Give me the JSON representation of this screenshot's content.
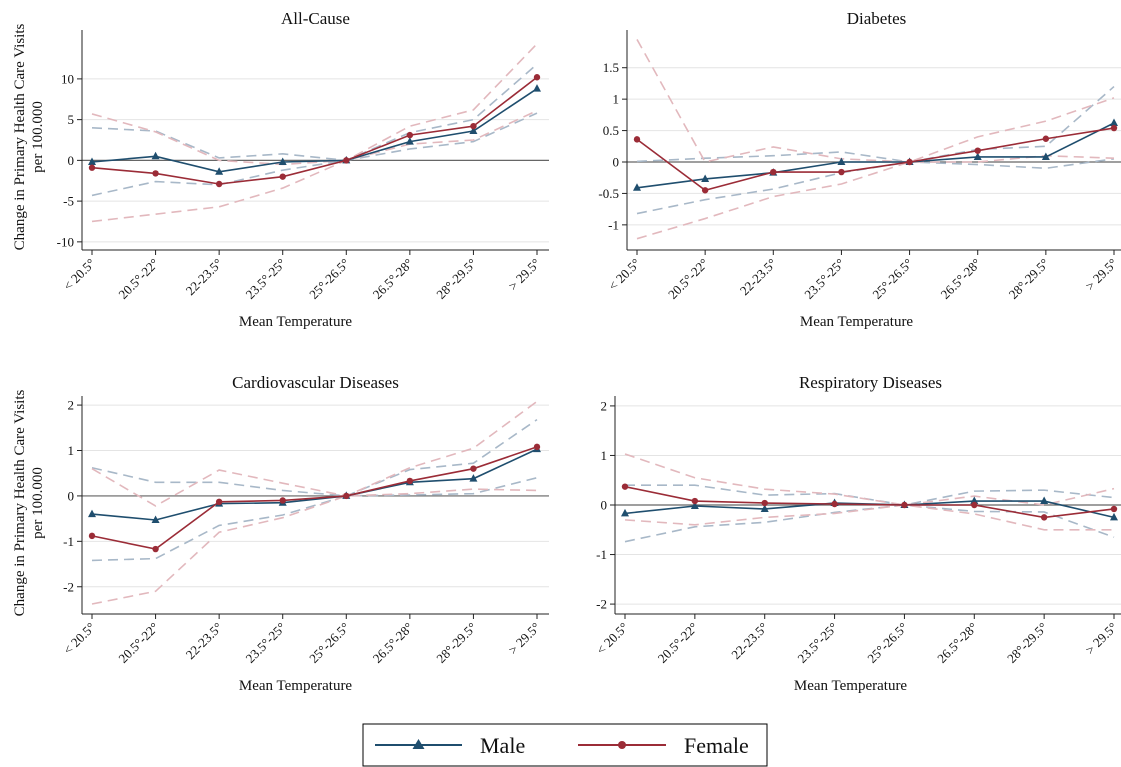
{
  "colors": {
    "male": "#1f4e6e",
    "female": "#9b2c37",
    "male_ci": "#a8b8c8",
    "female_ci": "#e2b8bd",
    "zero_line": "#666666",
    "grid": "#e4e4e4"
  },
  "y_axis_label_line1": "Change in Primary Health Care Visits",
  "y_axis_label_line2": "per 100.000",
  "legend": {
    "male": "Male",
    "female": "Female"
  },
  "chart_data": [
    {
      "type": "line",
      "title": "All-Cause",
      "xlabel": "Mean Temperature",
      "categories": [
        "< 20.5°",
        "20.5°-22°",
        "22-23.5°",
        "23.5°-25°",
        "25°-26.5°",
        "26.5°-28°",
        "28°-29.5°",
        "> 29.5°"
      ],
      "ylim": [
        -11,
        16
      ],
      "yticks": [
        -10,
        -5,
        0,
        5,
        10
      ],
      "grid": true,
      "series": [
        {
          "name": "Male",
          "values": [
            -0.2,
            0.5,
            -1.4,
            -0.2,
            0,
            2.3,
            3.6,
            8.8
          ],
          "ci_low": [
            -4.3,
            -2.6,
            -3.0,
            -1.2,
            0,
            1.4,
            2.3,
            5.8
          ],
          "ci_high": [
            4.0,
            3.6,
            0.3,
            0.8,
            0,
            3.4,
            5.0,
            11.8
          ]
        },
        {
          "name": "Female",
          "values": [
            -0.9,
            -1.6,
            -2.9,
            -2.0,
            0,
            3.1,
            4.2,
            10.2
          ],
          "ci_low": [
            -7.5,
            -6.6,
            -5.7,
            -3.4,
            0,
            2.0,
            2.5,
            6.1
          ],
          "ci_high": [
            5.7,
            3.5,
            0.0,
            -0.5,
            0,
            4.2,
            6.2,
            14.3
          ]
        }
      ]
    },
    {
      "type": "line",
      "title": "Diabetes",
      "xlabel": "Mean Temperature",
      "categories": [
        "< 20.5°",
        "20.5°-22°",
        "22-23.5°",
        "23.5°-25°",
        "25°-26.5°",
        "26.5°-28°",
        "28°-29.5°",
        "> 29.5°"
      ],
      "ylim": [
        -1.4,
        2.1
      ],
      "yticks": [
        -1,
        -0.5,
        0,
        0.5,
        1,
        1.5
      ],
      "grid": true,
      "series": [
        {
          "name": "Male",
          "values": [
            -0.41,
            -0.27,
            -0.17,
            0.0,
            0,
            0.08,
            0.08,
            0.62
          ],
          "ci_low": [
            -0.82,
            -0.6,
            -0.43,
            -0.17,
            0,
            -0.04,
            -0.1,
            0.05
          ],
          "ci_high": [
            0.01,
            0.06,
            0.1,
            0.16,
            0,
            0.2,
            0.25,
            1.2
          ]
        },
        {
          "name": "Female",
          "values": [
            0.36,
            -0.45,
            -0.16,
            -0.16,
            0,
            0.18,
            0.37,
            0.54
          ],
          "ci_low": [
            -1.22,
            -0.9,
            -0.55,
            -0.35,
            0,
            0.0,
            0.1,
            0.06
          ],
          "ci_high": [
            1.95,
            0.0,
            0.24,
            0.05,
            0,
            0.4,
            0.65,
            1.02
          ]
        }
      ]
    },
    {
      "type": "line",
      "title": "Cardiovascular Diseases",
      "xlabel": "Mean Temperature",
      "categories": [
        "< 20.5°",
        "20.5°-22°",
        "22-23.5°",
        "23.5°-25°",
        "25°-26.5°",
        "26.5°-28°",
        "28°-29.5°",
        "> 29.5°"
      ],
      "ylim": [
        -2.6,
        2.2
      ],
      "yticks": [
        -2,
        -1,
        0,
        1,
        2
      ],
      "grid": true,
      "series": [
        {
          "name": "Male",
          "values": [
            -0.4,
            -0.53,
            -0.17,
            -0.15,
            0,
            0.3,
            0.38,
            1.03
          ],
          "ci_low": [
            -1.42,
            -1.38,
            -0.65,
            -0.42,
            0,
            0.02,
            0.05,
            0.4
          ],
          "ci_high": [
            0.62,
            0.3,
            0.3,
            0.12,
            0,
            0.58,
            0.72,
            1.68
          ]
        },
        {
          "name": "Female",
          "values": [
            -0.88,
            -1.17,
            -0.13,
            -0.1,
            0,
            0.33,
            0.6,
            1.08
          ],
          "ci_low": [
            -2.38,
            -2.1,
            -0.8,
            -0.48,
            0,
            0.05,
            0.15,
            0.12
          ],
          "ci_high": [
            0.6,
            -0.22,
            0.57,
            0.28,
            0,
            0.62,
            1.05,
            2.08
          ]
        }
      ]
    },
    {
      "type": "line",
      "title": "Respiratory Diseases",
      "xlabel": "Mean Temperature",
      "categories": [
        "< 20.5°",
        "20.5°-22°",
        "22-23.5°",
        "23.5°-25°",
        "25°-26.5°",
        "26.5°-28°",
        "28°-29.5°",
        "> 29.5°"
      ],
      "ylim": [
        -2.2,
        2.2
      ],
      "yticks": [
        -2,
        -1,
        0,
        1,
        2
      ],
      "grid": true,
      "series": [
        {
          "name": "Male",
          "values": [
            -0.17,
            -0.02,
            -0.08,
            0.04,
            0,
            0.08,
            0.08,
            -0.25
          ],
          "ci_low": [
            -0.74,
            -0.44,
            -0.35,
            -0.15,
            0,
            -0.13,
            -0.14,
            -0.65
          ],
          "ci_high": [
            0.4,
            0.4,
            0.2,
            0.23,
            0,
            0.28,
            0.3,
            0.15
          ]
        },
        {
          "name": "Female",
          "values": [
            0.37,
            0.08,
            0.04,
            0.02,
            0,
            0.0,
            -0.25,
            -0.08
          ],
          "ci_low": [
            -0.3,
            -0.4,
            -0.25,
            -0.17,
            0,
            -0.18,
            -0.5,
            -0.5
          ],
          "ci_high": [
            1.03,
            0.55,
            0.32,
            0.22,
            0,
            0.18,
            0.0,
            0.33
          ]
        }
      ]
    }
  ]
}
